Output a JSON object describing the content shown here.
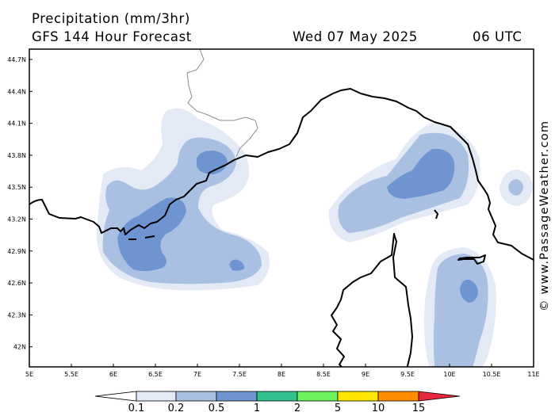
{
  "header": {
    "title": "Precipitation (mm/3hr)",
    "subtitle": "GFS 144 Hour Forecast",
    "date": "Wed 07 May 2025",
    "time": "06 UTC"
  },
  "credit": "© www.PassageWeather.com",
  "map": {
    "lat_labels": [
      "44.7N",
      "44.4N",
      "44.1N",
      "43.8N",
      "43.5N",
      "43.2N",
      "42.9N",
      "42.6N",
      "42.3N",
      "42N"
    ],
    "lon_labels": [
      "5E",
      "5.5E",
      "6E",
      "6.5E",
      "7E",
      "7.5E",
      "8E",
      "8.5E",
      "9E",
      "9.5E",
      "10E",
      "10.5E",
      "11E"
    ],
    "colors": {
      "p01": "#e3eaf6",
      "p02": "#a9c0e2",
      "p05": "#6e95d2",
      "coast": "#000000",
      "border": "#8c8c8c"
    }
  },
  "legend": {
    "labels": [
      "0.1",
      "0.2",
      "0.5",
      "1",
      "2",
      "5",
      "10",
      "15"
    ],
    "colors": [
      "#ffffff",
      "#e3eaf6",
      "#a9c0e2",
      "#6e95d2",
      "#2fc28e",
      "#6cf25a",
      "#ffe600",
      "#ff8c00",
      "#e8263c"
    ]
  }
}
